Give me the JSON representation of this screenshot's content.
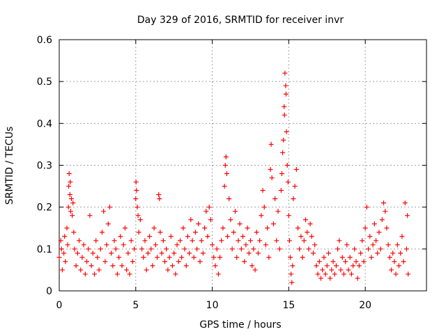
{
  "chart_data": {
    "type": "scatter",
    "title": "Day 329 of 2016, SRMTID for receiver invr",
    "xlabel": "GPS time / hours",
    "ylabel": "SRMTID / TECUs",
    "xlim": [
      0,
      24
    ],
    "ylim": [
      0,
      0.6
    ],
    "x_ticks": [
      0,
      5,
      10,
      15,
      20
    ],
    "x_tick_labels": [
      "0",
      "5",
      "10",
      "15",
      "20"
    ],
    "y_ticks": [
      0,
      0.1,
      0.2,
      0.3,
      0.4,
      0.5,
      0.6
    ],
    "y_tick_labels": [
      "0",
      "0.1",
      "0.2",
      "0.3",
      "0.4",
      "0.5",
      "0.6"
    ],
    "grid": true,
    "marker": "plus",
    "marker_color": "#ff0000",
    "series": [
      {
        "name": "SRMTID invr",
        "points": [
          [
            0.0,
            0.08
          ],
          [
            0.1,
            0.12
          ],
          [
            0.15,
            0.1
          ],
          [
            0.2,
            0.05
          ],
          [
            0.3,
            0.09
          ],
          [
            0.35,
            0.13
          ],
          [
            0.4,
            0.07
          ],
          [
            0.5,
            0.15
          ],
          [
            0.55,
            0.11
          ],
          [
            0.6,
            0.2
          ],
          [
            0.62,
            0.25
          ],
          [
            0.65,
            0.28
          ],
          [
            0.7,
            0.23
          ],
          [
            0.72,
            0.26
          ],
          [
            0.75,
            0.19
          ],
          [
            0.8,
            0.22
          ],
          [
            0.85,
            0.18
          ],
          [
            0.9,
            0.21
          ],
          [
            0.95,
            0.14
          ],
          [
            1.0,
            0.1
          ],
          [
            1.1,
            0.06
          ],
          [
            1.2,
            0.09
          ],
          [
            1.3,
            0.12
          ],
          [
            1.4,
            0.05
          ],
          [
            1.5,
            0.08
          ],
          [
            1.6,
            0.11
          ],
          [
            1.7,
            0.04
          ],
          [
            1.8,
            0.07
          ],
          [
            1.9,
            0.1
          ],
          [
            2.0,
            0.18
          ],
          [
            2.1,
            0.06
          ],
          [
            2.2,
            0.09
          ],
          [
            2.3,
            0.04
          ],
          [
            2.4,
            0.12
          ],
          [
            2.5,
            0.08
          ],
          [
            2.6,
            0.05
          ],
          [
            2.7,
            0.1
          ],
          [
            2.8,
            0.14
          ],
          [
            2.9,
            0.19
          ],
          [
            3.0,
            0.07
          ],
          [
            3.1,
            0.11
          ],
          [
            3.2,
            0.16
          ],
          [
            3.3,
            0.2
          ],
          [
            3.4,
            0.09
          ],
          [
            3.5,
            0.06
          ],
          [
            3.6,
            0.12
          ],
          [
            3.7,
            0.1
          ],
          [
            3.8,
            0.04
          ],
          [
            3.9,
            0.08
          ],
          [
            4.0,
            0.13
          ],
          [
            4.1,
            0.06
          ],
          [
            4.2,
            0.11
          ],
          [
            4.3,
            0.15
          ],
          [
            4.4,
            0.05
          ],
          [
            4.5,
            0.09
          ],
          [
            4.6,
            0.04
          ],
          [
            4.7,
            0.12
          ],
          [
            4.8,
            0.07
          ],
          [
            4.9,
            0.1
          ],
          [
            5.0,
            0.22
          ],
          [
            5.02,
            0.26
          ],
          [
            5.05,
            0.24
          ],
          [
            5.1,
            0.2
          ],
          [
            5.15,
            0.18
          ],
          [
            5.2,
            0.14
          ],
          [
            5.3,
            0.17
          ],
          [
            5.4,
            0.1
          ],
          [
            5.5,
            0.08
          ],
          [
            5.6,
            0.12
          ],
          [
            5.7,
            0.05
          ],
          [
            5.8,
            0.09
          ],
          [
            5.9,
            0.13
          ],
          [
            6.0,
            0.1
          ],
          [
            6.1,
            0.06
          ],
          [
            6.2,
            0.15
          ],
          [
            6.3,
            0.11
          ],
          [
            6.4,
            0.08
          ],
          [
            6.5,
            0.23
          ],
          [
            6.55,
            0.22
          ],
          [
            6.6,
            0.14
          ],
          [
            6.7,
            0.09
          ],
          [
            6.8,
            0.12
          ],
          [
            6.9,
            0.07
          ],
          [
            7.0,
            0.1
          ],
          [
            7.1,
            0.05
          ],
          [
            7.2,
            0.08
          ],
          [
            7.3,
            0.13
          ],
          [
            7.4,
            0.06
          ],
          [
            7.5,
            0.09
          ],
          [
            7.6,
            0.04
          ],
          [
            7.7,
            0.11
          ],
          [
            7.8,
            0.07
          ],
          [
            7.9,
            0.12
          ],
          [
            8.0,
            0.08
          ],
          [
            8.1,
            0.15
          ],
          [
            8.2,
            0.1
          ],
          [
            8.3,
            0.06
          ],
          [
            8.4,
            0.13
          ],
          [
            8.5,
            0.09
          ],
          [
            8.6,
            0.17
          ],
          [
            8.7,
            0.12
          ],
          [
            8.8,
            0.08
          ],
          [
            8.9,
            0.14
          ],
          [
            9.0,
            0.1
          ],
          [
            9.1,
            0.16
          ],
          [
            9.2,
            0.07
          ],
          [
            9.3,
            0.12
          ],
          [
            9.4,
            0.09
          ],
          [
            9.5,
            0.15
          ],
          [
            9.6,
            0.19
          ],
          [
            9.7,
            0.13
          ],
          [
            9.8,
            0.2
          ],
          [
            9.9,
            0.17
          ],
          [
            10.0,
            0.11
          ],
          [
            10.1,
            0.08
          ],
          [
            10.2,
            0.06
          ],
          [
            10.3,
            0.1
          ],
          [
            10.4,
            0.04
          ],
          [
            10.5,
            0.08
          ],
          [
            10.6,
            0.12
          ],
          [
            10.7,
            0.15
          ],
          [
            10.8,
            0.25
          ],
          [
            10.85,
            0.3
          ],
          [
            10.9,
            0.32
          ],
          [
            10.95,
            0.28
          ],
          [
            11.0,
            0.13
          ],
          [
            11.1,
            0.22
          ],
          [
            11.2,
            0.17
          ],
          [
            11.3,
            0.1
          ],
          [
            11.4,
            0.14
          ],
          [
            11.5,
            0.19
          ],
          [
            11.6,
            0.08
          ],
          [
            11.7,
            0.12
          ],
          [
            11.8,
            0.16
          ],
          [
            11.9,
            0.1
          ],
          [
            12.0,
            0.13
          ],
          [
            12.1,
            0.07
          ],
          [
            12.2,
            0.11
          ],
          [
            12.3,
            0.15
          ],
          [
            12.4,
            0.09
          ],
          [
            12.5,
            0.12
          ],
          [
            12.6,
            0.06
          ],
          [
            12.7,
            0.1
          ],
          [
            12.8,
            0.05
          ],
          [
            12.9,
            0.14
          ],
          [
            13.0,
            0.09
          ],
          [
            13.1,
            0.12
          ],
          [
            13.2,
            0.18
          ],
          [
            13.3,
            0.24
          ],
          [
            13.4,
            0.2
          ],
          [
            13.5,
            0.11
          ],
          [
            13.6,
            0.15
          ],
          [
            13.7,
            0.08
          ],
          [
            13.8,
            0.29
          ],
          [
            13.85,
            0.35
          ],
          [
            13.9,
            0.27
          ],
          [
            14.0,
            0.16
          ],
          [
            14.1,
            0.22
          ],
          [
            14.2,
            0.12
          ],
          [
            14.3,
            0.19
          ],
          [
            14.4,
            0.1
          ],
          [
            14.5,
            0.24
          ],
          [
            14.55,
            0.28
          ],
          [
            14.6,
            0.33
          ],
          [
            14.65,
            0.36
          ],
          [
            14.7,
            0.44
          ],
          [
            14.72,
            0.42
          ],
          [
            14.75,
            0.52
          ],
          [
            14.8,
            0.49
          ],
          [
            14.82,
            0.47
          ],
          [
            14.85,
            0.38
          ],
          [
            14.9,
            0.3
          ],
          [
            14.95,
            0.26
          ],
          [
            15.0,
            0.18
          ],
          [
            15.05,
            0.12
          ],
          [
            15.1,
            0.08
          ],
          [
            15.15,
            0.04
          ],
          [
            15.2,
            0.02
          ],
          [
            15.25,
            0.06
          ],
          [
            15.3,
            0.22
          ],
          [
            15.4,
            0.25
          ],
          [
            15.5,
            0.29
          ],
          [
            15.6,
            0.15
          ],
          [
            15.7,
            0.1
          ],
          [
            15.8,
            0.13
          ],
          [
            15.9,
            0.08
          ],
          [
            16.0,
            0.12
          ],
          [
            16.1,
            0.17
          ],
          [
            16.2,
            0.14
          ],
          [
            16.3,
            0.1
          ],
          [
            16.4,
            0.16
          ],
          [
            16.5,
            0.13
          ],
          [
            16.6,
            0.09
          ],
          [
            16.7,
            0.11
          ],
          [
            16.8,
            0.06
          ],
          [
            16.9,
            0.04
          ],
          [
            17.0,
            0.07
          ],
          [
            17.1,
            0.03
          ],
          [
            17.2,
            0.05
          ],
          [
            17.3,
            0.08
          ],
          [
            17.4,
            0.04
          ],
          [
            17.5,
            0.06
          ],
          [
            17.6,
            0.09
          ],
          [
            17.7,
            0.03
          ],
          [
            17.8,
            0.05
          ],
          [
            17.9,
            0.07
          ],
          [
            18.0,
            0.04
          ],
          [
            18.1,
            0.06
          ],
          [
            18.2,
            0.1
          ],
          [
            18.3,
            0.12
          ],
          [
            18.4,
            0.05
          ],
          [
            18.5,
            0.08
          ],
          [
            18.6,
            0.04
          ],
          [
            18.7,
            0.07
          ],
          [
            18.8,
            0.11
          ],
          [
            18.9,
            0.05
          ],
          [
            19.0,
            0.08
          ],
          [
            19.1,
            0.04
          ],
          [
            19.2,
            0.06
          ],
          [
            19.3,
            0.1
          ],
          [
            19.4,
            0.07
          ],
          [
            19.5,
            0.03
          ],
          [
            19.6,
            0.06
          ],
          [
            19.7,
            0.09
          ],
          [
            19.8,
            0.12
          ],
          [
            19.9,
            0.07
          ],
          [
            20.0,
            0.15
          ],
          [
            20.1,
            0.2
          ],
          [
            20.2,
            0.1
          ],
          [
            20.3,
            0.13
          ],
          [
            20.4,
            0.08
          ],
          [
            20.5,
            0.11
          ],
          [
            20.6,
            0.16
          ],
          [
            20.7,
            0.12
          ],
          [
            20.8,
            0.09
          ],
          [
            20.9,
            0.14
          ],
          [
            21.0,
            0.1
          ],
          [
            21.1,
            0.17
          ],
          [
            21.2,
            0.21
          ],
          [
            21.3,
            0.19
          ],
          [
            21.4,
            0.15
          ],
          [
            21.5,
            0.11
          ],
          [
            21.6,
            0.08
          ],
          [
            21.7,
            0.05
          ],
          [
            21.8,
            0.09
          ],
          [
            21.9,
            0.07
          ],
          [
            22.0,
            0.04
          ],
          [
            22.1,
            0.11
          ],
          [
            22.2,
            0.06
          ],
          [
            22.3,
            0.09
          ],
          [
            22.4,
            0.13
          ],
          [
            22.5,
            0.07
          ],
          [
            22.6,
            0.21
          ],
          [
            22.7,
            0.1
          ],
          [
            22.75,
            0.18
          ],
          [
            22.8,
            0.04
          ]
        ]
      }
    ]
  }
}
